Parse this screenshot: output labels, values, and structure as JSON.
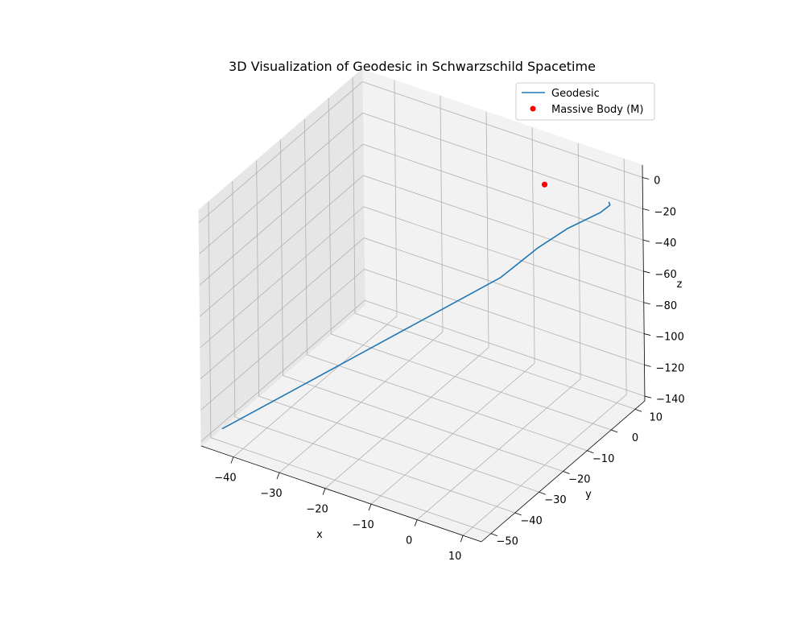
{
  "chart_data": {
    "type": "line",
    "projection": "3d",
    "title": "3D Visualization of Geodesic in Schwarzschild Spacetime",
    "xlabel": "x",
    "ylabel": "y",
    "zlabel": "z",
    "xlim": [
      -47,
      14
    ],
    "ylim": [
      -54,
      14
    ],
    "zlim": [
      -143,
      8
    ],
    "xticks": [
      -40,
      -30,
      -20,
      -10,
      0,
      10
    ],
    "yticks": [
      -50,
      -40,
      -30,
      -20,
      -10,
      0,
      10
    ],
    "zticks": [
      -140,
      -120,
      -100,
      -80,
      -60,
      -40,
      -20,
      0
    ],
    "grid": true,
    "legend_position": "top-right",
    "series": [
      {
        "name": "Geodesic",
        "kind": "line",
        "color": "#1f77b4",
        "points": [
          {
            "x": -44,
            "y": -51,
            "z": -133
          },
          {
            "x": -34,
            "y": -41,
            "z": -112
          },
          {
            "x": -24,
            "y": -31,
            "z": -91
          },
          {
            "x": -14,
            "y": -21,
            "z": -70
          },
          {
            "x": -4,
            "y": -11,
            "z": -49
          },
          {
            "x": 1,
            "y": -5,
            "z": -33
          },
          {
            "x": 5,
            "y": 0,
            "z": -23
          },
          {
            "x": 9.5,
            "y": 5,
            "z": -15
          },
          {
            "x": 10.8,
            "y": 6.5,
            "z": -11
          },
          {
            "x": 10.3,
            "y": 7,
            "z": -10
          }
        ]
      },
      {
        "name": "Massive Body (M)",
        "kind": "scatter",
        "color": "#ff0000",
        "points": [
          {
            "x": 0,
            "y": 0,
            "z": 0
          }
        ]
      }
    ]
  }
}
